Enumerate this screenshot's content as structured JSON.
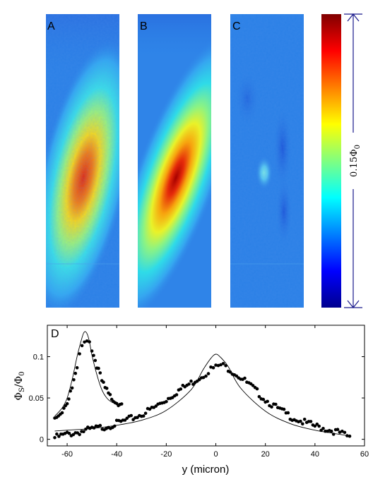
{
  "panels": {
    "a": {
      "letter": "A"
    },
    "b": {
      "letter": "B"
    },
    "c": {
      "letter": "C"
    },
    "d": {
      "letter": "D"
    }
  },
  "colorbar": {
    "label": "0.15Φ",
    "label_sub": "0",
    "colormap": "jet"
  },
  "colors": {
    "field_background": "#2a80e6",
    "arrow": "#1a1a8c",
    "data_points": "#000000",
    "fit_line": "#000000"
  },
  "chart_data": {
    "type": "scatter",
    "title": "",
    "xlabel": "y (micron)",
    "ylabel": "ΦS/Φ0",
    "ylabel_main": "Φ",
    "ylabel_sub1": "S",
    "ylabel_mid": "/Φ",
    "ylabel_sub2": "0",
    "xlim": [
      -68,
      60
    ],
    "ylim": [
      -0.008,
      0.138
    ],
    "xticks": [
      -60,
      -40,
      -20,
      0,
      20,
      40,
      60
    ],
    "yticks": [
      0,
      0.05,
      0.1
    ],
    "ytick_labels": [
      "0",
      "0.05",
      "0.1"
    ],
    "grid": false,
    "series": [
      {
        "x": [
          -65,
          -60,
          -55,
          -50,
          -45,
          -40,
          -35,
          -30,
          -25,
          -20,
          -15,
          -10,
          -5,
          -2,
          0,
          2,
          5,
          10,
          15,
          20,
          25,
          30,
          35,
          40,
          45,
          50,
          54
        ],
        "y": [
          0.002,
          0.006,
          0.009,
          0.012,
          0.015,
          0.019,
          0.024,
          0.03,
          0.038,
          0.048,
          0.059,
          0.068,
          0.078,
          0.085,
          0.087,
          0.09,
          0.086,
          0.075,
          0.062,
          0.048,
          0.037,
          0.028,
          0.021,
          0.016,
          0.012,
          0.008,
          0.002
        ]
      },
      {
        "x": [
          -65,
          -62,
          -60,
          -58,
          -56,
          -55,
          -54,
          -53,
          -52,
          -51,
          -50,
          -48,
          -46,
          -44,
          -42,
          -40,
          -38
        ],
        "y": [
          0.025,
          0.035,
          0.045,
          0.062,
          0.085,
          0.1,
          0.112,
          0.12,
          0.122,
          0.118,
          0.108,
          0.09,
          0.07,
          0.058,
          0.05,
          0.045,
          0.043
        ]
      },
      {
        "x": [
          -65,
          -60,
          -50,
          -40,
          -30,
          -20,
          -10,
          -5,
          -2,
          0,
          2,
          5,
          10,
          20,
          30,
          40,
          50,
          54
        ],
        "y": [
          0.01,
          0.011,
          0.013,
          0.017,
          0.023,
          0.035,
          0.06,
          0.085,
          0.098,
          0.103,
          0.099,
          0.088,
          0.062,
          0.034,
          0.019,
          0.011,
          0.006,
          0.004
        ]
      },
      {
        "x": [
          -65,
          -62,
          -60,
          -58,
          -56,
          -54,
          -53,
          -52,
          -51,
          -50,
          -48,
          -46,
          -44,
          -42,
          -40,
          -38
        ],
        "y": [
          0.028,
          0.038,
          0.05,
          0.072,
          0.1,
          0.123,
          0.13,
          0.128,
          0.118,
          0.102,
          0.078,
          0.06,
          0.05,
          0.045,
          0.043,
          0.042
        ]
      }
    ]
  }
}
